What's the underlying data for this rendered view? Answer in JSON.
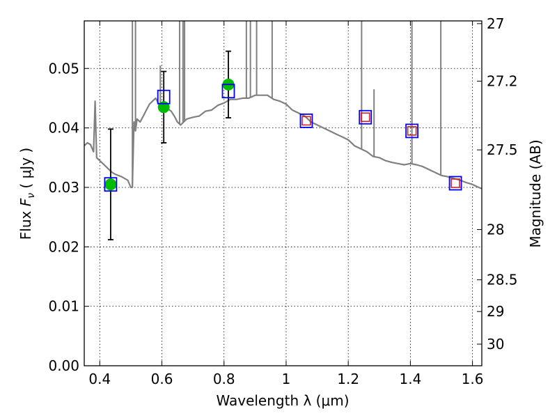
{
  "chart_data": {
    "type": "scatter",
    "xlabel": "Wavelength  λ (μm)",
    "ylabel": "Flux  Fν  ( μJy )",
    "ylabel_parts": {
      "prefix": "Flux  ",
      "symbol": "F",
      "subscript": "ν",
      "suffix": "  ( μJy )"
    },
    "y2label": "Magnitude (AB)",
    "xlim": [
      0.35,
      1.63
    ],
    "ylim": [
      0.0,
      0.058
    ],
    "grid": true,
    "xticks": [
      {
        "value": 0.4,
        "label": "0.4"
      },
      {
        "value": 0.6,
        "label": "0.6"
      },
      {
        "value": 0.8,
        "label": "0.8"
      },
      {
        "value": 1.0,
        "label": "1"
      },
      {
        "value": 1.2,
        "label": "1.2"
      },
      {
        "value": 1.4,
        "label": "1.4"
      },
      {
        "value": 1.6,
        "label": "1.6"
      }
    ],
    "yticks": [
      {
        "value": 0.0,
        "label": "0.00"
      },
      {
        "value": 0.01,
        "label": "0.01"
      },
      {
        "value": 0.02,
        "label": "0.02"
      },
      {
        "value": 0.03,
        "label": "0.03"
      },
      {
        "value": 0.04,
        "label": "0.04"
      },
      {
        "value": 0.05,
        "label": "0.05"
      }
    ],
    "y2ticks": [
      {
        "mag": 27,
        "label": "27"
      },
      {
        "mag": 27.2,
        "label": "27.2"
      },
      {
        "mag": 27.5,
        "label": "27.5"
      },
      {
        "mag": 28,
        "label": "28"
      },
      {
        "mag": 28.5,
        "label": "28.5"
      },
      {
        "mag": 29,
        "label": "29"
      },
      {
        "mag": 30,
        "label": "30"
      }
    ],
    "series": [
      {
        "name": "model spectrum",
        "kind": "line",
        "color": "#808080",
        "x": [
          0.35,
          0.36,
          0.37,
          0.38,
          0.385,
          0.39,
          0.4,
          0.41,
          0.42,
          0.43,
          0.44,
          0.45,
          0.46,
          0.47,
          0.48,
          0.49,
          0.5,
          0.505,
          0.51,
          0.515,
          0.52,
          0.53,
          0.54,
          0.55,
          0.56,
          0.57,
          0.58,
          0.59,
          0.6,
          0.61,
          0.62,
          0.63,
          0.64,
          0.65,
          0.66,
          0.67,
          0.68,
          0.7,
          0.72,
          0.74,
          0.76,
          0.78,
          0.8,
          0.82,
          0.84,
          0.86,
          0.88,
          0.9,
          0.92,
          0.94,
          0.96,
          0.98,
          1.0,
          1.02,
          1.04,
          1.06,
          1.08,
          1.1,
          1.12,
          1.14,
          1.16,
          1.18,
          1.2,
          1.22,
          1.24,
          1.26,
          1.28,
          1.3,
          1.32,
          1.34,
          1.36,
          1.38,
          1.4,
          1.42,
          1.44,
          1.46,
          1.48,
          1.5,
          1.52,
          1.54,
          1.56,
          1.58,
          1.6,
          1.62,
          1.63
        ],
        "y": [
          0.037,
          0.0375,
          0.0372,
          0.036,
          0.0445,
          0.035,
          0.0345,
          0.034,
          0.0335,
          0.033,
          0.0325,
          0.0322,
          0.032,
          0.0318,
          0.0315,
          0.0312,
          0.03,
          0.03,
          0.041,
          0.0395,
          0.0415,
          0.041,
          0.042,
          0.043,
          0.044,
          0.0445,
          0.045,
          0.044,
          0.0435,
          0.043,
          0.0432,
          0.0428,
          0.042,
          0.041,
          0.0405,
          0.041,
          0.0415,
          0.0418,
          0.042,
          0.0428,
          0.043,
          0.0438,
          0.0442,
          0.0448,
          0.0448,
          0.045,
          0.045,
          0.0455,
          0.0455,
          0.0455,
          0.0448,
          0.0445,
          0.044,
          0.043,
          0.0425,
          0.042,
          0.041,
          0.0405,
          0.04,
          0.0395,
          0.039,
          0.0385,
          0.038,
          0.037,
          0.0365,
          0.036,
          0.0352,
          0.035,
          0.0345,
          0.0342,
          0.034,
          0.0338,
          0.034,
          0.0338,
          0.0335,
          0.033,
          0.0325,
          0.032,
          0.0318,
          0.0315,
          0.0312,
          0.0308,
          0.0305,
          0.03,
          0.0298
        ]
      },
      {
        "name": "emission lines",
        "kind": "spikes",
        "color": "#808080",
        "lines": [
          {
            "x": 0.505,
            "y": 0.058
          },
          {
            "x": 0.515,
            "y": 0.058
          },
          {
            "x": 0.595,
            "y": 0.0505
          },
          {
            "x": 0.657,
            "y": 0.058
          },
          {
            "x": 0.668,
            "y": 0.058
          },
          {
            "x": 0.673,
            "y": 0.058
          },
          {
            "x": 0.872,
            "y": 0.058
          },
          {
            "x": 0.885,
            "y": 0.058
          },
          {
            "x": 0.905,
            "y": 0.058
          },
          {
            "x": 0.955,
            "y": 0.058
          },
          {
            "x": 1.243,
            "y": 0.058
          },
          {
            "x": 1.283,
            "y": 0.0465
          },
          {
            "x": 1.405,
            "y": 0.058
          },
          {
            "x": 1.498,
            "y": 0.058
          }
        ]
      },
      {
        "name": "observed photometry",
        "kind": "errorbar",
        "color": "#00bb00",
        "points": [
          {
            "x": 0.435,
            "y": 0.0305,
            "yerr": 0.0093
          },
          {
            "x": 0.606,
            "y": 0.0435,
            "yerr": 0.006
          },
          {
            "x": 0.814,
            "y": 0.0473,
            "yerr": 0.0056
          }
        ]
      },
      {
        "name": "model band flux",
        "kind": "square",
        "color": "#0000ff",
        "points": [
          {
            "x": 0.435,
            "y": 0.0305
          },
          {
            "x": 0.606,
            "y": 0.0452
          },
          {
            "x": 0.814,
            "y": 0.0462
          },
          {
            "x": 1.065,
            "y": 0.0412
          },
          {
            "x": 1.255,
            "y": 0.0418
          },
          {
            "x": 1.405,
            "y": 0.0395
          },
          {
            "x": 1.545,
            "y": 0.0307
          }
        ]
      },
      {
        "name": "predicted flux",
        "kind": "square-small",
        "color": "#cc2222",
        "points": [
          {
            "x": 1.065,
            "y": 0.0412
          },
          {
            "x": 1.255,
            "y": 0.0418
          },
          {
            "x": 1.405,
            "y": 0.0395
          },
          {
            "x": 1.545,
            "y": 0.0307
          }
        ]
      }
    ]
  }
}
